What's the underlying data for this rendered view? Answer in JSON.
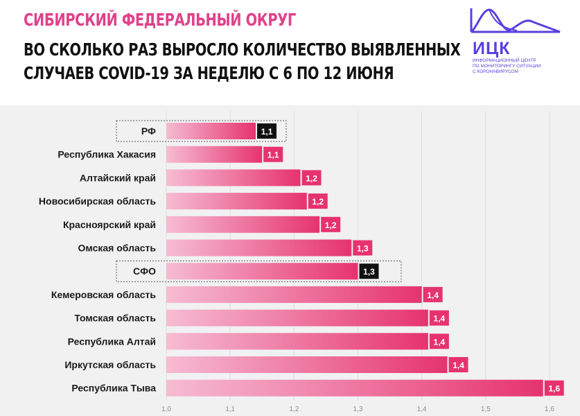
{
  "header": {
    "title": "СИБИРСКИЙ ФЕДЕРАЛЬНЫЙ ОКРУГ",
    "subtitle_line1": "ВО СКОЛЬКО РАЗ ВЫРОСЛО КОЛИЧЕСТВО ВЫЯВЛЕННЫХ",
    "subtitle_line2": "СЛУЧАЕВ COVID-19 ЗА НЕДЕЛЮ С 6 ПО 12 ИЮНЯ"
  },
  "logo": {
    "abbr": "ИЦК",
    "line1": "Информационный центр",
    "line2": "по мониторингу ситуации",
    "line3": "с коронавирусом"
  },
  "colors": {
    "bar_start": "#f6bcd2",
    "bar_end": "#e6336f",
    "label_pink": "#e6336f",
    "label_dark": "#111111",
    "title_pink": "#e0428a",
    "brand": "#5a3fe0"
  },
  "chart_data": {
    "type": "bar",
    "orientation": "horizontal",
    "title": "ВО СКОЛЬКО РАЗ ВЫРОСЛО КОЛИЧЕСТВО ВЫЯВЛЕННЫХ СЛУЧАЕВ COVID-19 ЗА НЕДЕЛЮ С 6 ПО 12 ИЮНЯ",
    "categories": [
      "РФ",
      "Республика Хакасия",
      "Алтайский край",
      "Новосибирская область",
      "Красноярский край",
      "Омская область",
      "СФО",
      "Кемеровская область",
      "Томская область",
      "Республика Алтай",
      "Иркутская область",
      "Республика Тыва"
    ],
    "values": [
      1.14,
      1.15,
      1.21,
      1.22,
      1.24,
      1.29,
      1.3,
      1.4,
      1.41,
      1.41,
      1.44,
      1.59
    ],
    "data_labels": [
      "1,1",
      "1,1",
      "1,2",
      "1,2",
      "1,2",
      "1,3",
      "1,3",
      "1,4",
      "1,4",
      "1,4",
      "1,4",
      "1,6"
    ],
    "highlighted": [
      "РФ",
      "СФО"
    ],
    "xlim": [
      1.0,
      1.6
    ],
    "xticks": [
      1.0,
      1.1,
      1.2,
      1.3,
      1.4,
      1.5,
      1.6
    ],
    "xtick_labels": [
      "1,0",
      "1,1",
      "1,2",
      "1,3",
      "1,4",
      "1,5",
      "1,6"
    ],
    "grid": true,
    "legend": "none"
  }
}
